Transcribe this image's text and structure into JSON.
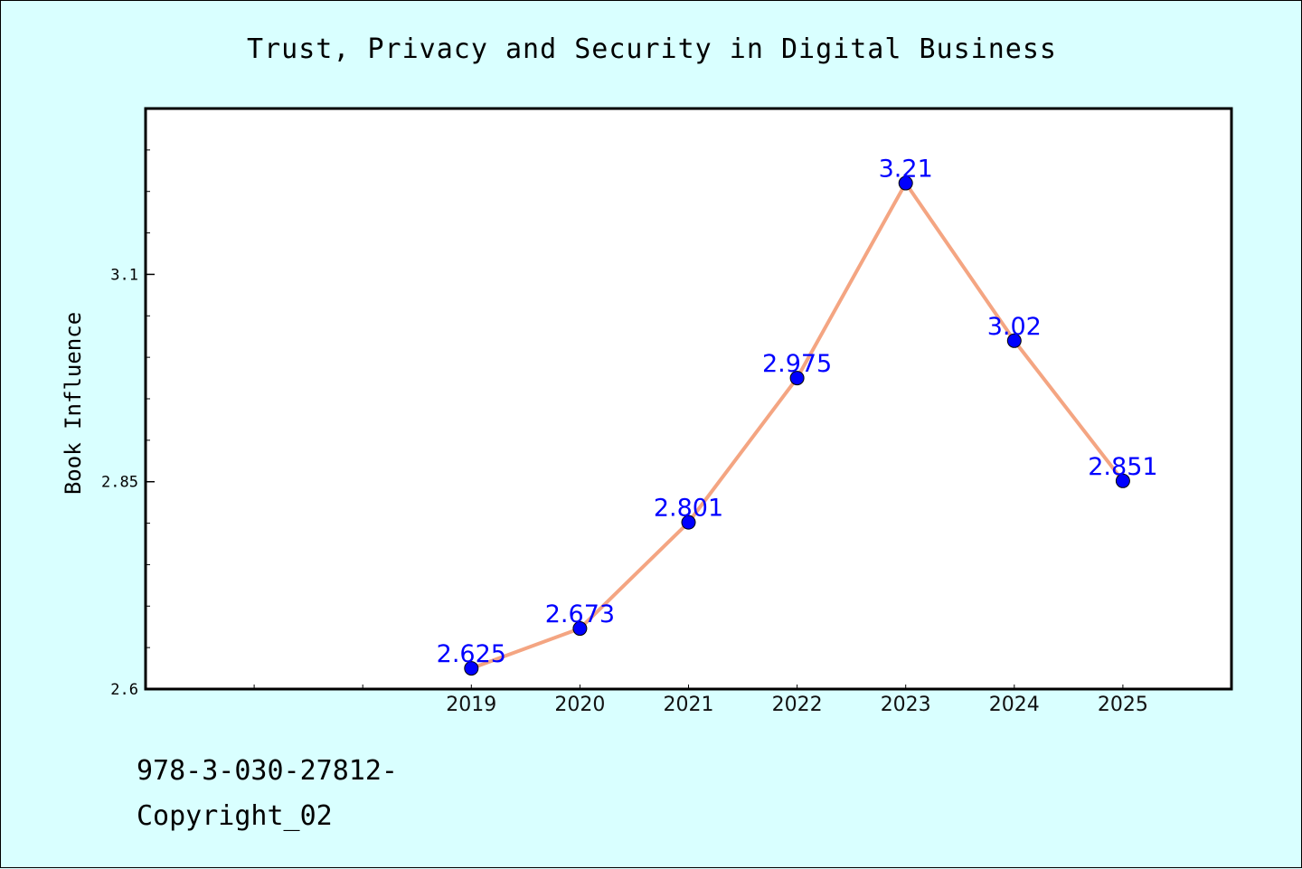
{
  "chart_data": {
    "type": "line",
    "title": "Trust, Privacy and Security in Digital Business",
    "ylabel": "Book Influence",
    "xlabel": "",
    "x": [
      "2019",
      "2020",
      "2021",
      "2022",
      "2023",
      "2024",
      "2025"
    ],
    "y": [
      2.625,
      2.673,
      2.801,
      2.975,
      3.21,
      3.02,
      2.851
    ],
    "data_labels": [
      "2.625",
      "2.673",
      "2.801",
      "2.975",
      "3.21",
      "3.02",
      "2.851"
    ],
    "yticks": [
      "2.6",
      "2.85",
      "3.1"
    ],
    "ytick_values": [
      2.6,
      2.85,
      3.1
    ],
    "ylim": [
      2.6,
      3.3
    ],
    "x_slots": 10,
    "line_color": "#f4a582",
    "marker_color": "#0000ff",
    "label_color": "#0000ff",
    "grid": false,
    "legend": "none"
  },
  "footer": {
    "isbn": "978-3-030-27812-",
    "copyright": "Copyright_02"
  }
}
